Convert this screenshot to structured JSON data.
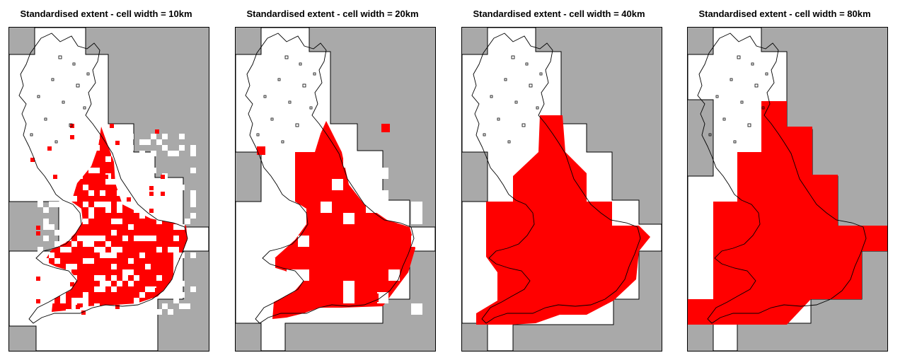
{
  "colors": {
    "background": "#ffffff",
    "outside_extent": "#a9a9a9",
    "extent": "#ffffff",
    "presence": "#ff0000",
    "outline": "#000000"
  },
  "panels": [
    {
      "title": "Standardised extent - cell width = 10km",
      "cell_width_km": 10
    },
    {
      "title": "Standardised extent - cell width = 20km",
      "cell_width_km": 20
    },
    {
      "title": "Standardised extent - cell width = 40km",
      "cell_width_km": 40
    },
    {
      "title": "Standardised extent - cell width = 80km",
      "cell_width_km": 80
    }
  ]
}
